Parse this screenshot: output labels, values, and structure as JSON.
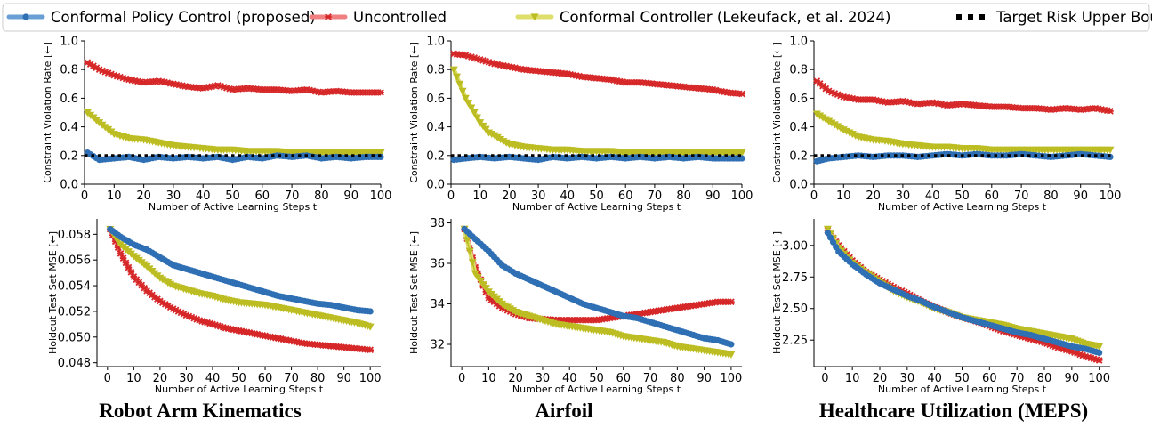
{
  "legend": {
    "entries": [
      {
        "label": "Conformal Policy Control (proposed)",
        "color": "#2f6fb4",
        "marker": "circle"
      },
      {
        "label": "Uncontrolled",
        "color": "#d62728",
        "marker": "x"
      },
      {
        "label": "Conformal Controller (Lekeufack, et al. 2024)",
        "color": "#bcbd22",
        "marker": "triangle-down"
      },
      {
        "label": "Target Risk Upper Bound",
        "color": "#000000",
        "marker": "dotted-line"
      }
    ]
  },
  "columns": [
    {
      "title": "Robot Arm Kinematics"
    },
    {
      "title": "Airfoil"
    },
    {
      "title": "Healthcare Utilization (MEPS)"
    }
  ],
  "chart_data": [
    {
      "type": "line",
      "id": "robot-violation",
      "xlabel": "Number of Active Learning Steps t",
      "ylabel": "Constraint Violation Rate [←]",
      "xlim": [
        0,
        100
      ],
      "ylim": [
        0.0,
        1.0
      ],
      "xticks": [
        0,
        10,
        20,
        30,
        40,
        50,
        60,
        70,
        80,
        90,
        100
      ],
      "yticks": [
        0.0,
        0.2,
        0.4,
        0.6,
        0.8,
        1.0
      ],
      "yfmt": 1,
      "target": 0.2,
      "series": [
        {
          "name": "Uncontrolled",
          "x": [
            1,
            5,
            10,
            15,
            20,
            25,
            30,
            35,
            40,
            45,
            50,
            55,
            60,
            65,
            70,
            75,
            80,
            85,
            90,
            95,
            100
          ],
          "values": [
            0.85,
            0.8,
            0.76,
            0.73,
            0.71,
            0.72,
            0.7,
            0.68,
            0.67,
            0.69,
            0.66,
            0.67,
            0.66,
            0.66,
            0.65,
            0.66,
            0.64,
            0.65,
            0.64,
            0.64,
            0.64
          ]
        },
        {
          "name": "Conformal Controller (Lekeufack, et al. 2024)",
          "x": [
            1,
            5,
            10,
            15,
            20,
            25,
            30,
            35,
            40,
            45,
            50,
            55,
            60,
            65,
            70,
            75,
            80,
            85,
            90,
            95,
            100
          ],
          "values": [
            0.5,
            0.43,
            0.35,
            0.32,
            0.31,
            0.29,
            0.27,
            0.26,
            0.25,
            0.24,
            0.24,
            0.23,
            0.23,
            0.23,
            0.22,
            0.22,
            0.22,
            0.22,
            0.22,
            0.22,
            0.22
          ]
        },
        {
          "name": "Conformal Policy Control (proposed)",
          "x": [
            1,
            5,
            10,
            15,
            20,
            25,
            30,
            35,
            40,
            45,
            50,
            55,
            60,
            65,
            70,
            75,
            80,
            85,
            90,
            95,
            100
          ],
          "values": [
            0.22,
            0.17,
            0.18,
            0.19,
            0.17,
            0.19,
            0.18,
            0.19,
            0.18,
            0.19,
            0.17,
            0.19,
            0.18,
            0.2,
            0.19,
            0.2,
            0.18,
            0.19,
            0.18,
            0.19,
            0.19
          ]
        }
      ]
    },
    {
      "type": "line",
      "id": "airfoil-violation",
      "xlabel": "Number of Active Learning Steps t",
      "ylabel": "Constraint Violation Rate [←]",
      "xlim": [
        0,
        100
      ],
      "ylim": [
        0.0,
        1.0
      ],
      "xticks": [
        0,
        10,
        20,
        30,
        40,
        50,
        60,
        70,
        80,
        90,
        100
      ],
      "yticks": [
        0.0,
        0.2,
        0.4,
        0.6,
        0.8,
        1.0
      ],
      "yfmt": 1,
      "target": 0.2,
      "series": [
        {
          "name": "Uncontrolled",
          "x": [
            1,
            5,
            10,
            15,
            20,
            25,
            30,
            35,
            40,
            45,
            50,
            55,
            60,
            65,
            70,
            75,
            80,
            85,
            90,
            95,
            100
          ],
          "values": [
            0.91,
            0.9,
            0.87,
            0.84,
            0.82,
            0.8,
            0.79,
            0.78,
            0.77,
            0.75,
            0.74,
            0.73,
            0.71,
            0.71,
            0.7,
            0.69,
            0.68,
            0.67,
            0.66,
            0.64,
            0.63
          ]
        },
        {
          "name": "Conformal Controller (Lekeufack, et al. 2024)",
          "x": [
            1,
            3,
            5,
            8,
            10,
            13,
            15,
            18,
            20,
            25,
            30,
            35,
            40,
            45,
            50,
            55,
            60,
            65,
            70,
            75,
            80,
            85,
            90,
            95,
            100
          ],
          "values": [
            0.8,
            0.7,
            0.6,
            0.5,
            0.43,
            0.36,
            0.34,
            0.3,
            0.28,
            0.26,
            0.25,
            0.24,
            0.24,
            0.23,
            0.23,
            0.23,
            0.22,
            0.22,
            0.22,
            0.22,
            0.22,
            0.22,
            0.22,
            0.22,
            0.22
          ]
        },
        {
          "name": "Conformal Policy Control (proposed)",
          "x": [
            1,
            5,
            10,
            15,
            20,
            25,
            30,
            35,
            40,
            45,
            50,
            55,
            60,
            65,
            70,
            75,
            80,
            85,
            90,
            95,
            100
          ],
          "values": [
            0.17,
            0.18,
            0.19,
            0.18,
            0.19,
            0.18,
            0.17,
            0.19,
            0.18,
            0.19,
            0.18,
            0.19,
            0.18,
            0.19,
            0.18,
            0.19,
            0.18,
            0.19,
            0.18,
            0.18,
            0.18
          ]
        }
      ]
    },
    {
      "type": "line",
      "id": "meps-violation",
      "xlabel": "Number of Active Learning Steps t",
      "ylabel": "Constraint Violation Rate [←]",
      "xlim": [
        0,
        100
      ],
      "ylim": [
        0.0,
        1.0
      ],
      "xticks": [
        0,
        10,
        20,
        30,
        40,
        50,
        60,
        70,
        80,
        90,
        100
      ],
      "yticks": [
        0.0,
        0.2,
        0.4,
        0.6,
        0.8,
        1.0
      ],
      "yfmt": 1,
      "target": 0.2,
      "series": [
        {
          "name": "Uncontrolled",
          "x": [
            1,
            5,
            10,
            15,
            20,
            25,
            30,
            35,
            40,
            45,
            50,
            55,
            60,
            65,
            70,
            75,
            80,
            85,
            90,
            95,
            100
          ],
          "values": [
            0.72,
            0.65,
            0.61,
            0.59,
            0.59,
            0.57,
            0.58,
            0.56,
            0.57,
            0.55,
            0.56,
            0.55,
            0.54,
            0.54,
            0.53,
            0.53,
            0.52,
            0.53,
            0.52,
            0.53,
            0.51
          ]
        },
        {
          "name": "Conformal Controller (Lekeufack, et al. 2024)",
          "x": [
            1,
            5,
            10,
            15,
            20,
            25,
            30,
            35,
            40,
            45,
            50,
            55,
            60,
            65,
            70,
            75,
            80,
            85,
            90,
            95,
            100
          ],
          "values": [
            0.49,
            0.44,
            0.38,
            0.33,
            0.31,
            0.3,
            0.28,
            0.27,
            0.26,
            0.26,
            0.25,
            0.25,
            0.24,
            0.24,
            0.24,
            0.24,
            0.24,
            0.24,
            0.24,
            0.24,
            0.24
          ]
        },
        {
          "name": "Conformal Policy Control (proposed)",
          "x": [
            1,
            5,
            10,
            15,
            20,
            25,
            30,
            35,
            40,
            45,
            50,
            55,
            60,
            65,
            70,
            75,
            80,
            85,
            90,
            95,
            100
          ],
          "values": [
            0.16,
            0.18,
            0.19,
            0.2,
            0.19,
            0.2,
            0.2,
            0.19,
            0.2,
            0.21,
            0.2,
            0.21,
            0.2,
            0.2,
            0.21,
            0.2,
            0.19,
            0.2,
            0.21,
            0.2,
            0.19
          ]
        }
      ]
    },
    {
      "type": "line",
      "id": "robot-mse",
      "xlabel": "Number of Active Learning Steps t",
      "ylabel": "Holdout Test Set MSE [←]",
      "xlim": [
        -4,
        104
      ],
      "ylim": [
        0.0477,
        0.0592
      ],
      "xticks": [
        0,
        10,
        20,
        30,
        40,
        50,
        60,
        70,
        80,
        90,
        100
      ],
      "yticks": [
        0.048,
        0.05,
        0.052,
        0.054,
        0.056,
        0.058
      ],
      "yfmt": 3,
      "series": [
        {
          "name": "Uncontrolled",
          "x": [
            1,
            5,
            10,
            15,
            20,
            25,
            30,
            35,
            40,
            45,
            50,
            55,
            60,
            65,
            70,
            75,
            80,
            85,
            90,
            95,
            100
          ],
          "values": [
            0.0584,
            0.0565,
            0.0547,
            0.0536,
            0.0528,
            0.0522,
            0.0517,
            0.0513,
            0.051,
            0.0507,
            0.0505,
            0.0503,
            0.0501,
            0.0499,
            0.0497,
            0.0495,
            0.0494,
            0.0493,
            0.0492,
            0.0491,
            0.049
          ]
        },
        {
          "name": "Conformal Controller (Lekeufack, et al. 2024)",
          "x": [
            1,
            5,
            10,
            15,
            20,
            25,
            30,
            35,
            40,
            45,
            50,
            55,
            60,
            65,
            70,
            75,
            80,
            85,
            90,
            95,
            100
          ],
          "values": [
            0.0584,
            0.0572,
            0.0563,
            0.0555,
            0.0546,
            0.054,
            0.0537,
            0.0534,
            0.0532,
            0.0529,
            0.0527,
            0.0526,
            0.0525,
            0.0523,
            0.0521,
            0.0519,
            0.0517,
            0.0515,
            0.0513,
            0.0511,
            0.0508
          ]
        },
        {
          "name": "Conformal Policy Control (proposed)",
          "x": [
            1,
            5,
            10,
            15,
            20,
            25,
            30,
            35,
            40,
            45,
            50,
            55,
            60,
            65,
            70,
            75,
            80,
            85,
            90,
            95,
            100
          ],
          "values": [
            0.0584,
            0.0578,
            0.0572,
            0.0568,
            0.0562,
            0.0556,
            0.0553,
            0.055,
            0.0547,
            0.0544,
            0.0541,
            0.0538,
            0.0535,
            0.0532,
            0.053,
            0.0528,
            0.0526,
            0.0525,
            0.0523,
            0.0521,
            0.052
          ]
        }
      ]
    },
    {
      "type": "line",
      "id": "airfoil-mse",
      "xlabel": "Number of Active Learning Steps t",
      "ylabel": "Holdout Test Set MSE [←]",
      "xlim": [
        -4,
        104
      ],
      "ylim": [
        30.9,
        38.2
      ],
      "xticks": [
        0,
        10,
        20,
        30,
        40,
        50,
        60,
        70,
        80,
        90,
        100
      ],
      "yticks": [
        32,
        34,
        36,
        38
      ],
      "yfmt": 0,
      "series": [
        {
          "name": "Uncontrolled",
          "x": [
            1,
            5,
            10,
            15,
            20,
            25,
            30,
            35,
            40,
            45,
            50,
            55,
            60,
            65,
            70,
            75,
            80,
            85,
            90,
            95,
            100
          ],
          "values": [
            37.7,
            35.8,
            34.3,
            33.8,
            33.5,
            33.3,
            33.25,
            33.2,
            33.2,
            33.2,
            33.2,
            33.3,
            33.4,
            33.5,
            33.6,
            33.7,
            33.8,
            33.9,
            34.0,
            34.1,
            34.1
          ]
        },
        {
          "name": "Conformal Controller (Lekeufack, et al. 2024)",
          "x": [
            1,
            5,
            10,
            15,
            20,
            25,
            30,
            35,
            40,
            45,
            50,
            55,
            60,
            65,
            70,
            75,
            80,
            85,
            90,
            95,
            100
          ],
          "values": [
            37.7,
            35.5,
            34.6,
            34.0,
            33.6,
            33.4,
            33.2,
            33.0,
            32.9,
            32.8,
            32.7,
            32.6,
            32.4,
            32.3,
            32.2,
            32.1,
            31.9,
            31.8,
            31.7,
            31.6,
            31.5
          ]
        },
        {
          "name": "Conformal Policy Control (proposed)",
          "x": [
            1,
            5,
            10,
            15,
            20,
            25,
            30,
            35,
            40,
            45,
            50,
            55,
            60,
            65,
            70,
            75,
            80,
            85,
            90,
            95,
            100
          ],
          "values": [
            37.7,
            37.2,
            36.6,
            35.9,
            35.5,
            35.2,
            34.9,
            34.6,
            34.3,
            34.0,
            33.8,
            33.6,
            33.4,
            33.3,
            33.1,
            32.9,
            32.7,
            32.5,
            32.3,
            32.2,
            32.0
          ]
        }
      ]
    },
    {
      "type": "line",
      "id": "meps-mse",
      "xlabel": "Number of Active Learning Steps t",
      "ylabel": "Holdout Test Set MSE [←]",
      "xlim": [
        -4,
        104
      ],
      "ylim": [
        2.04,
        3.21
      ],
      "xticks": [
        0,
        10,
        20,
        30,
        40,
        50,
        60,
        70,
        80,
        90,
        100
      ],
      "yticks": [
        2.25,
        2.5,
        2.75,
        3.0
      ],
      "yfmt": 2,
      "series": [
        {
          "name": "Uncontrolled",
          "x": [
            1,
            5,
            10,
            15,
            20,
            25,
            30,
            35,
            40,
            45,
            50,
            55,
            60,
            65,
            70,
            75,
            80,
            85,
            90,
            95,
            100
          ],
          "values": [
            3.12,
            3.0,
            2.88,
            2.79,
            2.73,
            2.67,
            2.62,
            2.56,
            2.51,
            2.47,
            2.43,
            2.4,
            2.36,
            2.32,
            2.29,
            2.26,
            2.23,
            2.19,
            2.16,
            2.12,
            2.09
          ]
        },
        {
          "name": "Conformal Controller (Lekeufack, et al. 2024)",
          "x": [
            1,
            5,
            10,
            15,
            20,
            25,
            30,
            35,
            40,
            45,
            50,
            55,
            60,
            65,
            70,
            75,
            80,
            85,
            90,
            95,
            100
          ],
          "values": [
            3.13,
            2.98,
            2.86,
            2.78,
            2.71,
            2.64,
            2.59,
            2.55,
            2.5,
            2.47,
            2.43,
            2.41,
            2.39,
            2.37,
            2.34,
            2.32,
            2.3,
            2.28,
            2.26,
            2.22,
            2.2
          ]
        },
        {
          "name": "Conformal Policy Control (proposed)",
          "x": [
            1,
            5,
            10,
            15,
            20,
            25,
            30,
            35,
            40,
            45,
            50,
            55,
            60,
            65,
            70,
            75,
            80,
            85,
            90,
            95,
            100
          ],
          "values": [
            3.1,
            2.95,
            2.85,
            2.77,
            2.7,
            2.65,
            2.6,
            2.56,
            2.51,
            2.47,
            2.43,
            2.4,
            2.37,
            2.34,
            2.31,
            2.29,
            2.26,
            2.23,
            2.2,
            2.18,
            2.15
          ]
        }
      ]
    }
  ]
}
